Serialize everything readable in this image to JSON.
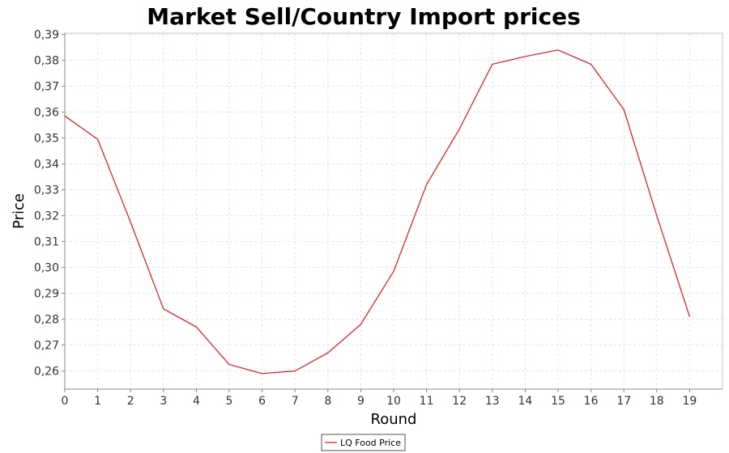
{
  "chart_data": {
    "type": "line",
    "title": "Market Sell/Country Import prices",
    "xlabel": "Round",
    "ylabel": "Price",
    "xlim": [
      0,
      20
    ],
    "ylim": [
      0.253,
      0.3905
    ],
    "x_ticks": [
      "0",
      "1",
      "2",
      "3",
      "4",
      "5",
      "6",
      "7",
      "8",
      "9",
      "10",
      "11",
      "12",
      "13",
      "14",
      "15",
      "16",
      "17",
      "18",
      "19"
    ],
    "y_ticks": [
      {
        "value": 0.26,
        "label": "0,26"
      },
      {
        "value": 0.27,
        "label": "0,27"
      },
      {
        "value": 0.28,
        "label": "0,28"
      },
      {
        "value": 0.29,
        "label": "0,29"
      },
      {
        "value": 0.3,
        "label": "0,30"
      },
      {
        "value": 0.31,
        "label": "0,31"
      },
      {
        "value": 0.32,
        "label": "0,32"
      },
      {
        "value": 0.33,
        "label": "0,33"
      },
      {
        "value": 0.34,
        "label": "0,34"
      },
      {
        "value": 0.35,
        "label": "0,35"
      },
      {
        "value": 0.36,
        "label": "0,36"
      },
      {
        "value": 0.37,
        "label": "0,37"
      },
      {
        "value": 0.38,
        "label": "0,38"
      },
      {
        "value": 0.39,
        "label": "0,39"
      }
    ],
    "grid": true,
    "legend_position": "bottom",
    "series": [
      {
        "name": "LQ Food Price",
        "color": "#e8141c",
        "x": [
          0,
          1,
          2,
          3,
          4,
          5,
          6,
          7,
          8,
          9,
          10,
          11,
          12,
          13,
          14,
          15,
          16,
          17,
          18,
          19
        ],
        "values": [
          0.3585,
          0.3495,
          0.3175,
          0.284,
          0.277,
          0.2625,
          0.259,
          0.26,
          0.267,
          0.278,
          0.2985,
          0.332,
          0.3535,
          0.3785,
          0.3815,
          0.384,
          0.3785,
          0.361,
          0.32,
          0.281
        ]
      }
    ]
  }
}
